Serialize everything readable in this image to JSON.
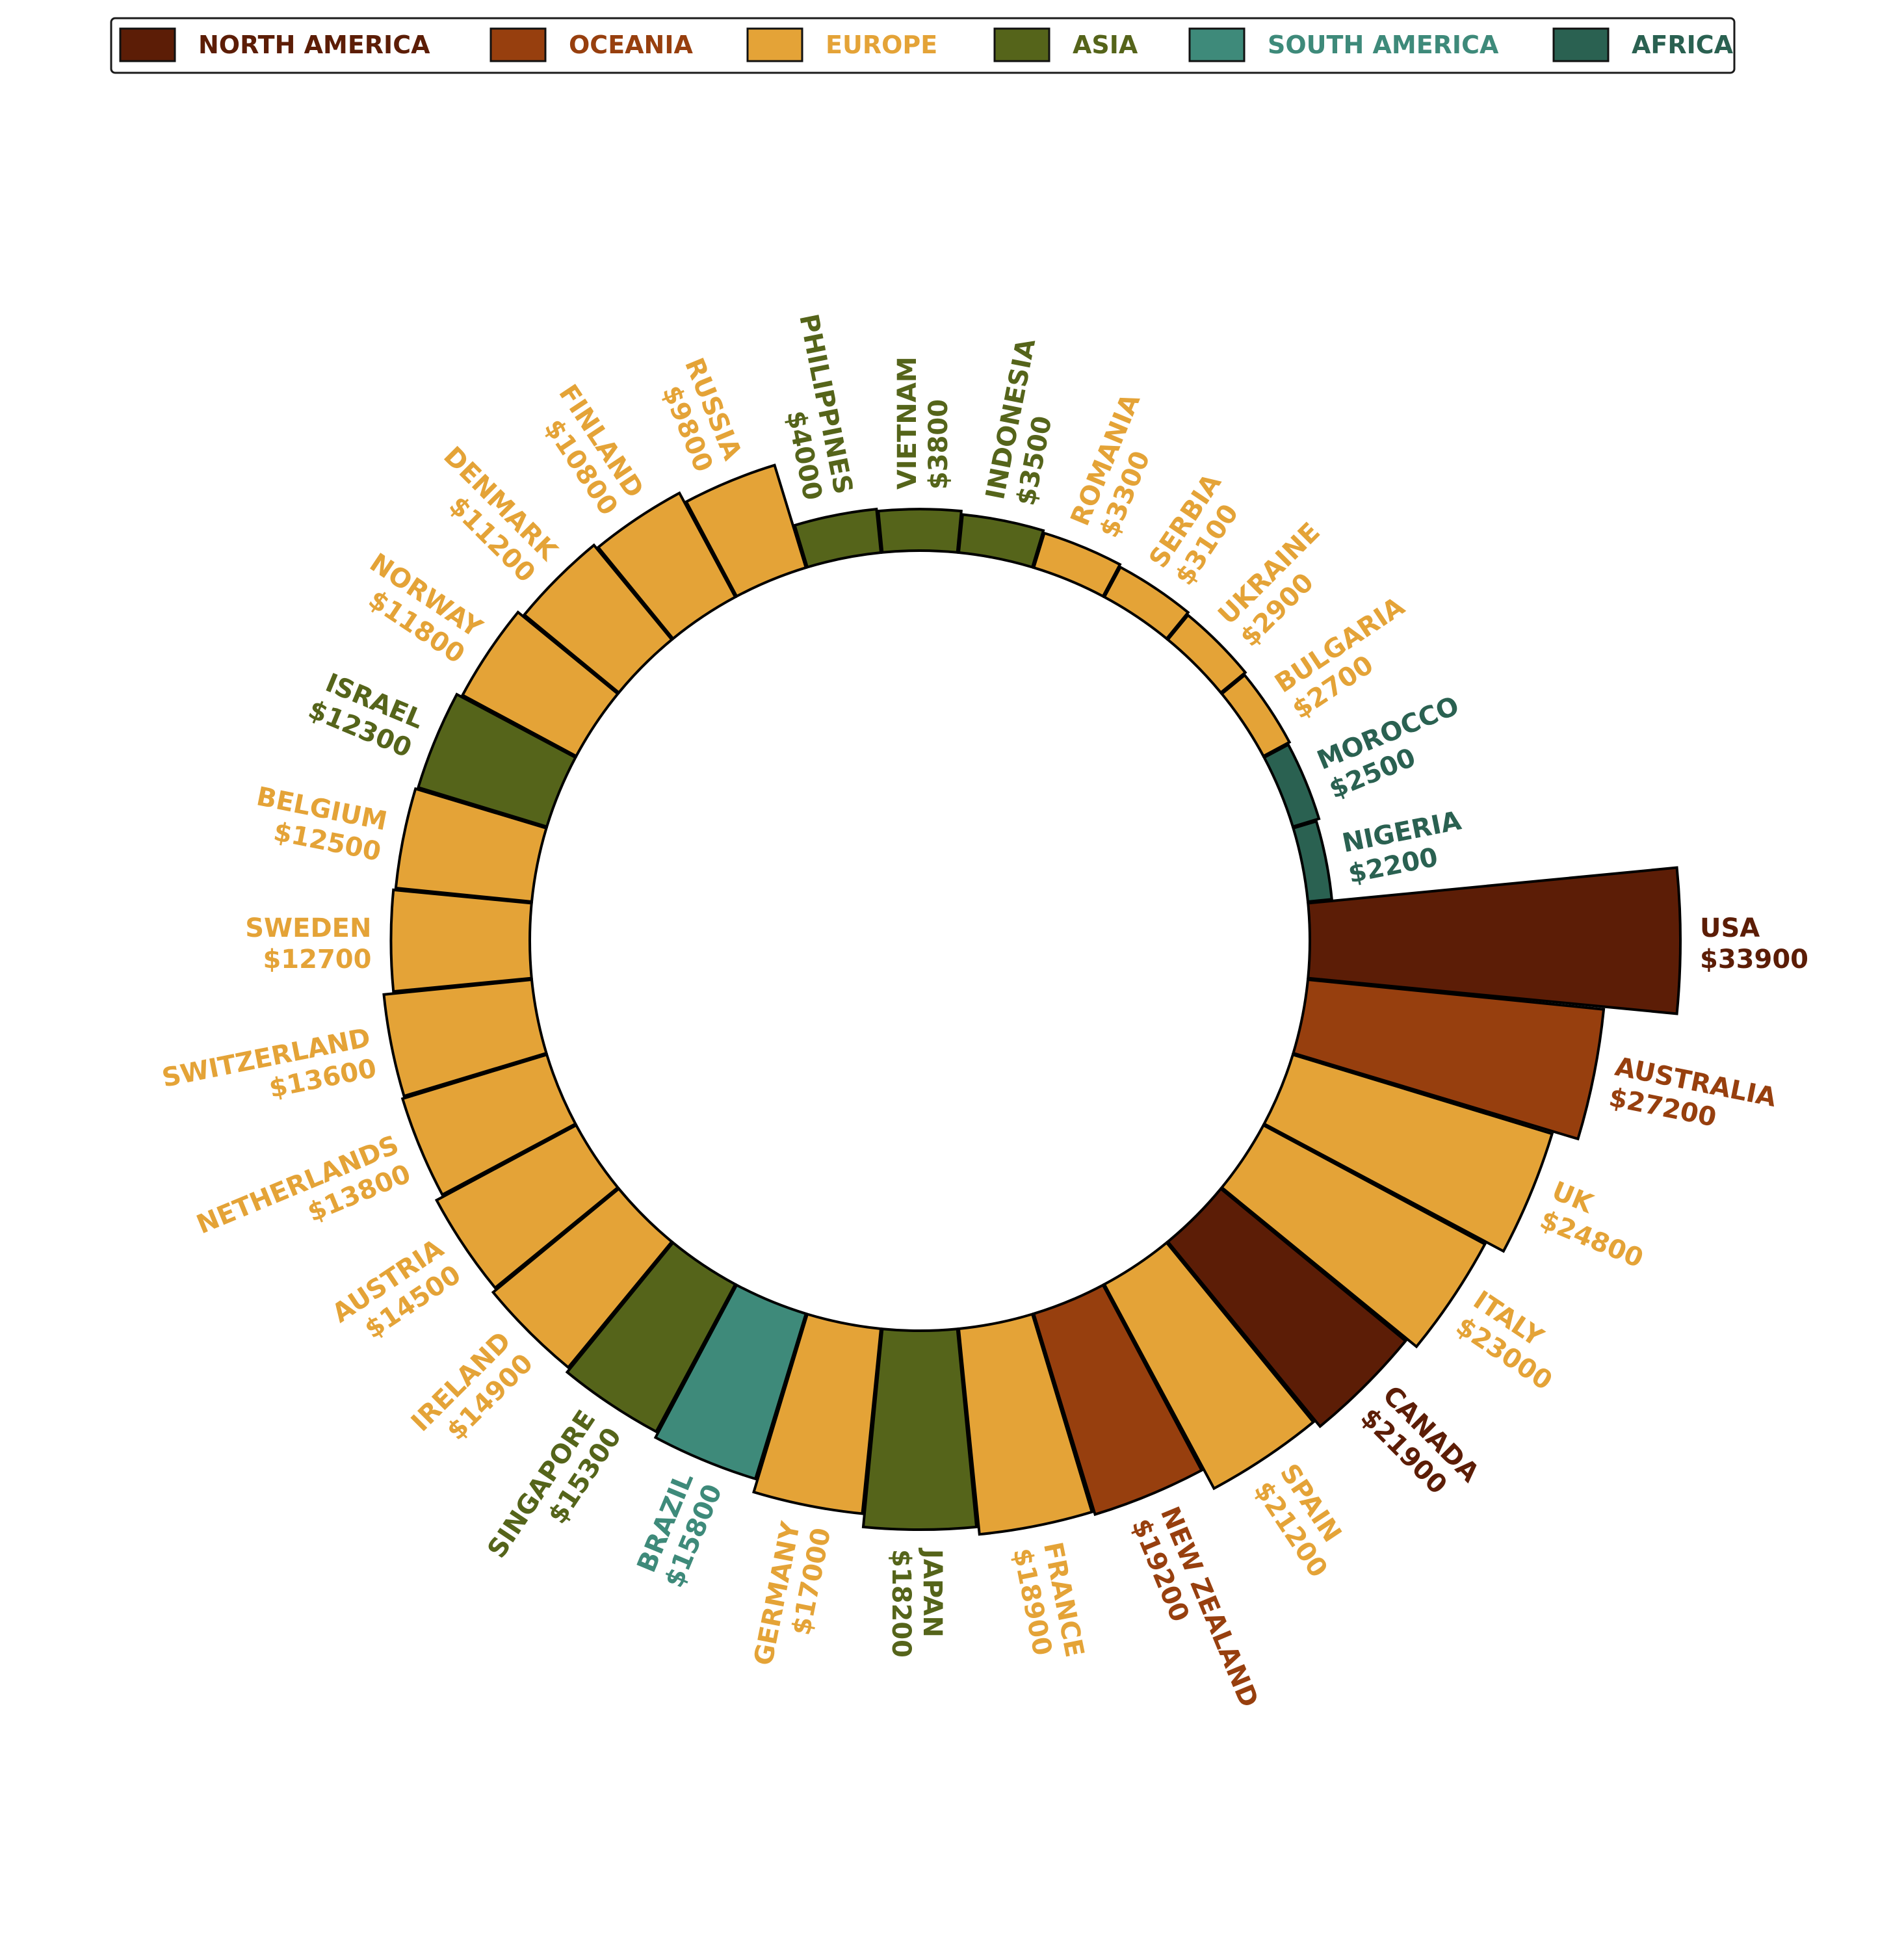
{
  "chart_data": {
    "type": "bar",
    "subtype": "circular-bar",
    "title": "",
    "value_prefix": "$",
    "legend": {
      "placement": "top",
      "entries": [
        {
          "name": "NORTH AMERICA",
          "color": "#5C1D06"
        },
        {
          "name": "OCEANIA",
          "color": "#973F0E"
        },
        {
          "name": "EUROPE",
          "color": "#E4A337"
        },
        {
          "name": "ASIA",
          "color": "#55641A"
        },
        {
          "name": "SOUTH AMERICA",
          "color": "#3E8A7A"
        },
        {
          "name": "AFRICA",
          "color": "#2A6151"
        }
      ]
    },
    "categories": [
      "USA",
      "AUSTRALIA",
      "UK",
      "ITALY",
      "CANADA",
      "SPAIN",
      "NEW ZEALAND",
      "FRANCE",
      "JAPAN",
      "GERMANY",
      "BRAZIL",
      "SINGAPORE",
      "IRELAND",
      "AUSTRIA",
      "NETHERLANDS",
      "SWITZERLAND",
      "SWEDEN",
      "BELGIUM",
      "ISRAEL",
      "NORWAY",
      "DENMARK",
      "FINLAND",
      "RUSSIA",
      "PHILIPPINES",
      "VIETNAM",
      "INDONESIA",
      "ROMANIA",
      "SERBIA",
      "UKRAINE",
      "BULGARIA",
      "MOROCCO",
      "NIGERIA"
    ],
    "values": [
      33900,
      27200,
      24800,
      23000,
      21900,
      21200,
      19200,
      18900,
      18200,
      17000,
      15800,
      15300,
      14900,
      14500,
      13800,
      13600,
      12700,
      12500,
      12300,
      11800,
      11200,
      10800,
      9800,
      4000,
      3800,
      3500,
      3300,
      3100,
      2900,
      2700,
      2500,
      2200
    ],
    "groups": [
      "NORTH AMERICA",
      "OCEANIA",
      "EUROPE",
      "EUROPE",
      "NORTH AMERICA",
      "EUROPE",
      "OCEANIA",
      "EUROPE",
      "ASIA",
      "EUROPE",
      "SOUTH AMERICA",
      "ASIA",
      "EUROPE",
      "EUROPE",
      "EUROPE",
      "EUROPE",
      "EUROPE",
      "EUROPE",
      "ASIA",
      "EUROPE",
      "EUROPE",
      "EUROPE",
      "EUROPE",
      "ASIA",
      "ASIA",
      "ASIA",
      "EUROPE",
      "EUROPE",
      "EUROPE",
      "EUROPE",
      "AFRICA",
      "AFRICA"
    ],
    "value_labels": [
      "$33900",
      "$27200",
      "$24800",
      "$23000",
      "$21900",
      "$21200",
      "$19200",
      "$18900",
      "$18200",
      "$17000",
      "$15800",
      "$15300",
      "$14900",
      "$14500",
      "$13800",
      "$13600",
      "$12700",
      "$12500",
      "$12300",
      "$11800",
      "$11200",
      "$10800",
      "$9800",
      "$4000",
      "$3800",
      "$3500",
      "$3300",
      "$3100",
      "$2900",
      "$2700",
      "$2500",
      "$2200"
    ]
  }
}
